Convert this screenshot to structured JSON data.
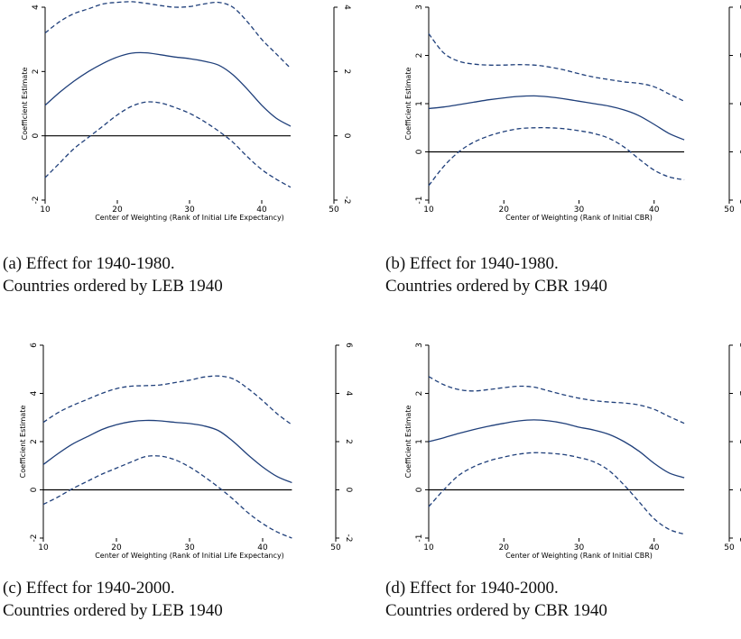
{
  "panels": [
    {
      "caption_line1": "(a) Effect for 1940-1980.",
      "caption_line2": "Countries ordered by LEB 1940"
    },
    {
      "caption_line1": "(b) Effect for 1940-1980.",
      "caption_line2": "Countries ordered by CBR 1940"
    },
    {
      "caption_line1": "(c) Effect for 1940-2000.",
      "caption_line2": "Countries ordered by LEB 1940"
    },
    {
      "caption_line1": "(d) Effect for 1940-2000.",
      "caption_line2": "Countries ordered by CBR 1940"
    }
  ],
  "colors": {
    "line": "#1f3f7a",
    "zero_line": "#000000",
    "frame": "#000000"
  },
  "chart_data": [
    {
      "type": "line",
      "xlabel": "Center of Weighting (Rank of Initial Life Expectancy)",
      "ylabel": "Coefficient Estimate",
      "xlim": [
        10,
        50
      ],
      "ylim": [
        -2,
        4
      ],
      "xticks": [
        10,
        20,
        30,
        40,
        50
      ],
      "yticks": [
        -2,
        0,
        2,
        4
      ],
      "reference_line": 0,
      "x": [
        10,
        12,
        14,
        16,
        18,
        20,
        22,
        24,
        26,
        28,
        30,
        32,
        34,
        36,
        38,
        40,
        42,
        44
      ],
      "series": [
        {
          "style": "solid",
          "values": [
            0.95,
            1.35,
            1.7,
            2.0,
            2.25,
            2.45,
            2.57,
            2.58,
            2.52,
            2.45,
            2.4,
            2.32,
            2.2,
            1.9,
            1.45,
            0.95,
            0.55,
            0.3
          ]
        },
        {
          "style": "dashed",
          "values": [
            3.2,
            3.55,
            3.8,
            3.95,
            4.1,
            4.15,
            4.17,
            4.12,
            4.05,
            4.0,
            4.02,
            4.1,
            4.15,
            4.0,
            3.55,
            3.0,
            2.55,
            2.1
          ]
        },
        {
          "style": "dashed",
          "values": [
            -1.3,
            -0.85,
            -0.4,
            -0.05,
            0.3,
            0.65,
            0.92,
            1.05,
            1.02,
            0.88,
            0.7,
            0.45,
            0.15,
            -0.2,
            -0.65,
            -1.05,
            -1.35,
            -1.6
          ]
        }
      ]
    },
    {
      "type": "line",
      "xlabel": "Center of Weighting (Rank of Initial CBR)",
      "ylabel": "Coefficient Estimate",
      "xlim": [
        10,
        50
      ],
      "ylim": [
        -1,
        3
      ],
      "xticks": [
        10,
        20,
        30,
        40,
        50
      ],
      "yticks": [
        -1,
        0,
        1,
        2,
        3
      ],
      "reference_line": 0,
      "x": [
        10,
        12,
        14,
        16,
        18,
        20,
        22,
        24,
        26,
        28,
        30,
        32,
        34,
        36,
        38,
        40,
        42,
        44
      ],
      "series": [
        {
          "style": "solid",
          "values": [
            0.9,
            0.93,
            0.98,
            1.03,
            1.08,
            1.12,
            1.15,
            1.16,
            1.14,
            1.1,
            1.05,
            1.0,
            0.95,
            0.87,
            0.75,
            0.57,
            0.38,
            0.25
          ]
        },
        {
          "style": "dashed",
          "values": [
            2.45,
            2.05,
            1.88,
            1.82,
            1.8,
            1.8,
            1.81,
            1.8,
            1.76,
            1.7,
            1.62,
            1.55,
            1.5,
            1.45,
            1.42,
            1.35,
            1.2,
            1.05
          ]
        },
        {
          "style": "dashed",
          "values": [
            -0.7,
            -0.3,
            0.0,
            0.2,
            0.33,
            0.42,
            0.48,
            0.5,
            0.5,
            0.48,
            0.44,
            0.38,
            0.28,
            0.1,
            -0.15,
            -0.38,
            -0.52,
            -0.58
          ]
        }
      ]
    },
    {
      "type": "line",
      "xlabel": "Center of Weighting (Rank of Initial Life Expectancy)",
      "ylabel": "Coefficient Estimate",
      "xlim": [
        10,
        50
      ],
      "ylim": [
        -2,
        6
      ],
      "xticks": [
        10,
        20,
        30,
        40,
        50
      ],
      "yticks": [
        -2,
        0,
        2,
        4,
        6
      ],
      "reference_line": 0,
      "x": [
        10,
        12,
        14,
        16,
        18,
        20,
        22,
        24,
        26,
        28,
        30,
        32,
        34,
        36,
        38,
        40,
        42,
        44
      ],
      "series": [
        {
          "style": "solid",
          "values": [
            1.05,
            1.5,
            1.9,
            2.2,
            2.5,
            2.7,
            2.83,
            2.88,
            2.86,
            2.8,
            2.75,
            2.65,
            2.45,
            2.0,
            1.45,
            0.95,
            0.55,
            0.3
          ]
        },
        {
          "style": "dashed",
          "values": [
            2.8,
            3.2,
            3.5,
            3.75,
            4.0,
            4.2,
            4.3,
            4.32,
            4.35,
            4.45,
            4.55,
            4.68,
            4.72,
            4.6,
            4.2,
            3.7,
            3.15,
            2.7
          ]
        },
        {
          "style": "dashed",
          "values": [
            -0.6,
            -0.3,
            0.05,
            0.35,
            0.65,
            0.9,
            1.15,
            1.38,
            1.4,
            1.25,
            0.95,
            0.55,
            0.1,
            -0.4,
            -0.95,
            -1.4,
            -1.75,
            -2.0
          ]
        }
      ]
    },
    {
      "type": "line",
      "xlabel": "Center of Weighting (Rank of Initial CBR)",
      "ylabel": "Coefficient Estimate",
      "xlim": [
        10,
        50
      ],
      "ylim": [
        -1,
        3
      ],
      "xticks": [
        10,
        20,
        30,
        40,
        50
      ],
      "yticks": [
        -1,
        0,
        1,
        2,
        3
      ],
      "reference_line": 0,
      "x": [
        10,
        12,
        14,
        16,
        18,
        20,
        22,
        24,
        26,
        28,
        30,
        32,
        34,
        36,
        38,
        40,
        42,
        44
      ],
      "series": [
        {
          "style": "solid",
          "values": [
            1.0,
            1.08,
            1.17,
            1.25,
            1.32,
            1.38,
            1.43,
            1.45,
            1.43,
            1.38,
            1.3,
            1.24,
            1.15,
            1.0,
            0.8,
            0.55,
            0.35,
            0.25
          ]
        },
        {
          "style": "dashed",
          "values": [
            2.35,
            2.18,
            2.08,
            2.05,
            2.08,
            2.12,
            2.15,
            2.13,
            2.05,
            1.97,
            1.9,
            1.85,
            1.82,
            1.8,
            1.76,
            1.67,
            1.52,
            1.38
          ]
        },
        {
          "style": "dashed",
          "values": [
            -0.35,
            0.0,
            0.3,
            0.48,
            0.6,
            0.68,
            0.74,
            0.77,
            0.76,
            0.73,
            0.67,
            0.58,
            0.4,
            0.1,
            -0.25,
            -0.6,
            -0.82,
            -0.92
          ]
        }
      ]
    }
  ]
}
